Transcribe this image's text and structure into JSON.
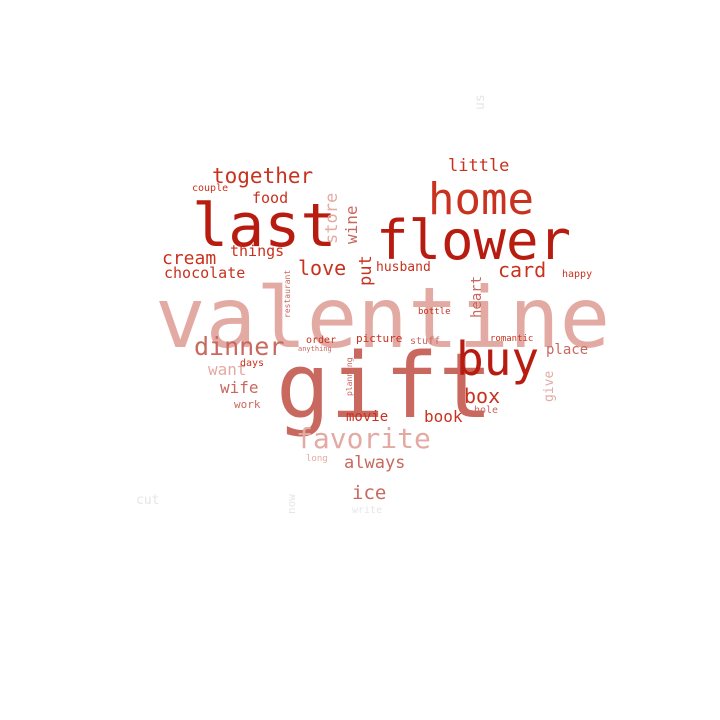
{
  "palette": {
    "dark_red": "#b81c10",
    "red": "#c8321f",
    "rose": "#c8685e",
    "pink": "#e3aaa3",
    "faint": "#e6e6e6"
  },
  "words": {
    "valentine": "valentine",
    "gift": "gift",
    "last": "last",
    "flower": "flower",
    "home": "home",
    "buy": "buy",
    "favorite": "favorite",
    "dinner": "dinner",
    "together": "together",
    "love": "love",
    "card": "card",
    "box": "box",
    "always": "always",
    "ice": "ice",
    "cream": "cream",
    "chocolate": "chocolate",
    "store": "store",
    "wine": "wine",
    "put": "put",
    "husband": "husband",
    "little": "little",
    "food": "food",
    "things": "things",
    "wife": "wife",
    "want": "want",
    "movie": "movie",
    "book": "book",
    "place": "place",
    "give": "give",
    "heart": "heart",
    "couple": "couple",
    "work": "work",
    "days": "days",
    "picture": "picture",
    "stuff": "stuff",
    "order": "order",
    "anything": "anything",
    "romantic": "romantic",
    "happy": "happy",
    "bottle": "bottle",
    "hole": "hole",
    "restaurant": "restaurant",
    "planning": "planning",
    "around": "around",
    "long": "long",
    "us": "us",
    "cut": "cut",
    "now": "now",
    "write": "write"
  }
}
